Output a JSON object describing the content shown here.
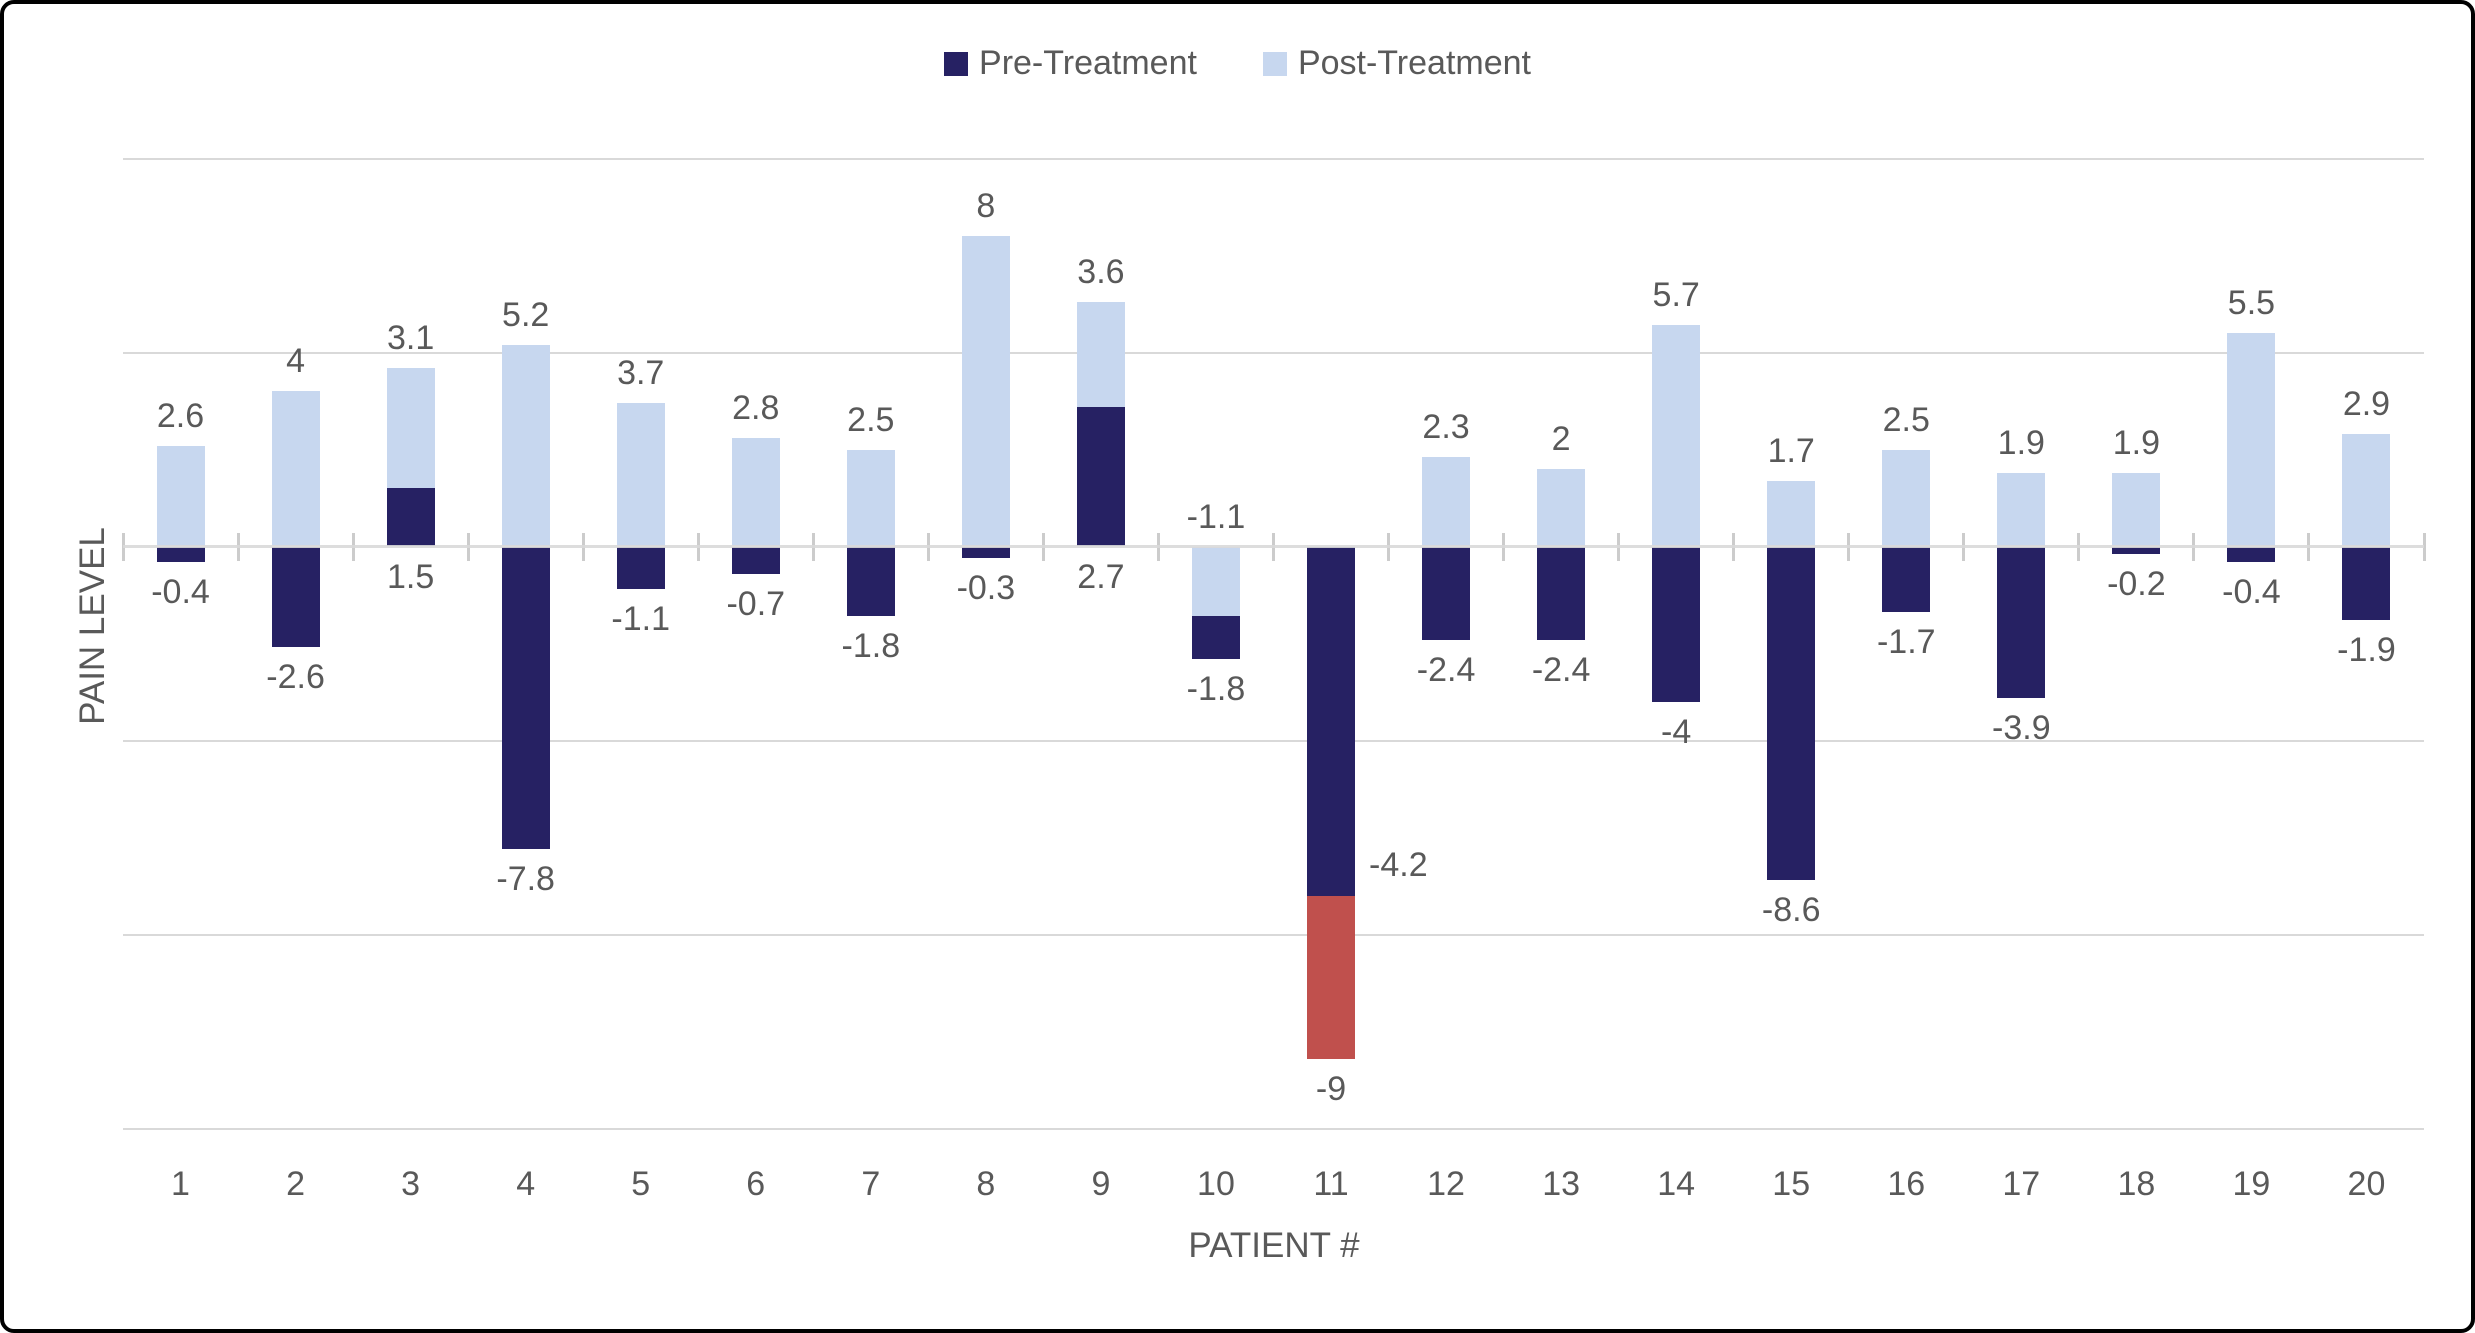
{
  "chart_data": {
    "type": "bar",
    "stacked": true,
    "title": "",
    "xlabel": "PATIENT #",
    "ylabel": "PAIN LEVEL",
    "ylim": [
      -15,
      10
    ],
    "gridline_values": [
      10,
      5,
      0,
      -5,
      -10,
      -15
    ],
    "grid": true,
    "legend_position": "top-center",
    "legend": [
      {
        "name": "Pre-Treatment",
        "series": "pre"
      },
      {
        "name": "Post-Treatment",
        "series": "post"
      }
    ],
    "colors": {
      "pre": "#262163",
      "post": "#C7D7EF",
      "post_highlight": "#C0504D",
      "text": "#595959",
      "gridline": "#D9D9D9",
      "tick": "#CCCCCC",
      "frame_border": "#000000"
    },
    "categories": [
      "1",
      "2",
      "3",
      "4",
      "5",
      "6",
      "7",
      "8",
      "9",
      "10",
      "11",
      "12",
      "13",
      "14",
      "15",
      "16",
      "17",
      "18",
      "19",
      "20"
    ],
    "patients": [
      {
        "id": "1",
        "pre": -0.4,
        "post": 2.6,
        "segments": [
          {
            "series": "pre",
            "from": -0.4,
            "to": 0
          },
          {
            "series": "post",
            "from": 0,
            "to": 2.6
          }
        ],
        "labels": [
          {
            "text": "2.6",
            "pos": "top"
          },
          {
            "text": "-0.4",
            "pos": "bottom"
          }
        ]
      },
      {
        "id": "2",
        "pre": -2.6,
        "post": 4,
        "segments": [
          {
            "series": "pre",
            "from": -2.6,
            "to": 0
          },
          {
            "series": "post",
            "from": 0,
            "to": 4
          }
        ],
        "labels": [
          {
            "text": "4",
            "pos": "top"
          },
          {
            "text": "-2.6",
            "pos": "bottom"
          }
        ]
      },
      {
        "id": "3",
        "pre": 1.5,
        "post": 3.1,
        "segments": [
          {
            "series": "pre",
            "from": 0,
            "to": 1.5
          },
          {
            "series": "post",
            "from": 1.5,
            "to": 4.6
          }
        ],
        "labels": [
          {
            "text": "3.1",
            "pos": "top"
          },
          {
            "text": "1.5",
            "pos": "bottom"
          }
        ]
      },
      {
        "id": "4",
        "pre": -7.8,
        "post": 5.2,
        "segments": [
          {
            "series": "pre",
            "from": -7.8,
            "to": 0
          },
          {
            "series": "post",
            "from": 0,
            "to": 5.2
          }
        ],
        "labels": [
          {
            "text": "5.2",
            "pos": "top"
          },
          {
            "text": "-7.8",
            "pos": "bottom"
          }
        ]
      },
      {
        "id": "5",
        "pre": -1.1,
        "post": 3.7,
        "segments": [
          {
            "series": "pre",
            "from": -1.1,
            "to": 0
          },
          {
            "series": "post",
            "from": 0,
            "to": 3.7
          }
        ],
        "labels": [
          {
            "text": "3.7",
            "pos": "top"
          },
          {
            "text": "-1.1",
            "pos": "bottom"
          }
        ]
      },
      {
        "id": "6",
        "pre": -0.7,
        "post": 2.8,
        "segments": [
          {
            "series": "pre",
            "from": -0.7,
            "to": 0
          },
          {
            "series": "post",
            "from": 0,
            "to": 2.8
          }
        ],
        "labels": [
          {
            "text": "2.8",
            "pos": "top"
          },
          {
            "text": "-0.7",
            "pos": "bottom"
          }
        ]
      },
      {
        "id": "7",
        "pre": -1.8,
        "post": 2.5,
        "segments": [
          {
            "series": "pre",
            "from": -1.8,
            "to": 0
          },
          {
            "series": "post",
            "from": 0,
            "to": 2.5
          }
        ],
        "labels": [
          {
            "text": "2.5",
            "pos": "top"
          },
          {
            "text": "-1.8",
            "pos": "bottom"
          }
        ]
      },
      {
        "id": "8",
        "pre": -0.3,
        "post": 8,
        "segments": [
          {
            "series": "pre",
            "from": -0.3,
            "to": 0
          },
          {
            "series": "post",
            "from": 0,
            "to": 8
          }
        ],
        "labels": [
          {
            "text": "8",
            "pos": "top"
          },
          {
            "text": "-0.3",
            "pos": "bottom"
          }
        ]
      },
      {
        "id": "9",
        "pre": 3.6,
        "post": 2.7,
        "segments": [
          {
            "series": "pre",
            "from": 0,
            "to": 3.6
          },
          {
            "series": "post",
            "from": 3.6,
            "to": 6.3
          }
        ],
        "labels": [
          {
            "text": "3.6",
            "pos": "top"
          },
          {
            "text": "2.7",
            "pos": "bottom"
          }
        ]
      },
      {
        "id": "10",
        "pre": -1.1,
        "post": -1.8,
        "segments": [
          {
            "series": "post",
            "from": -1.8,
            "to": 0
          },
          {
            "series": "pre",
            "from": -2.9,
            "to": -1.8
          }
        ],
        "labels": [
          {
            "text": "-1.1",
            "pos": "top"
          },
          {
            "text": "-1.8",
            "pos": "bottom"
          }
        ]
      },
      {
        "id": "11",
        "pre": -9,
        "post": -4.2,
        "highlighted": true,
        "segments": [
          {
            "series": "pre",
            "from": -9,
            "to": 0
          },
          {
            "series": "post_highlight",
            "from": -13.2,
            "to": -9
          }
        ],
        "labels": [
          {
            "text": "-4.2",
            "pos": "side",
            "at": -8.2
          },
          {
            "text": "-9",
            "pos": "bottom"
          }
        ]
      },
      {
        "id": "12",
        "pre": -2.4,
        "post": 2.3,
        "segments": [
          {
            "series": "pre",
            "from": -2.4,
            "to": 0
          },
          {
            "series": "post",
            "from": 0,
            "to": 2.3
          }
        ],
        "labels": [
          {
            "text": "2.3",
            "pos": "top"
          },
          {
            "text": "-2.4",
            "pos": "bottom"
          }
        ]
      },
      {
        "id": "13",
        "pre": -2.4,
        "post": 2,
        "segments": [
          {
            "series": "pre",
            "from": -2.4,
            "to": 0
          },
          {
            "series": "post",
            "from": 0,
            "to": 2
          }
        ],
        "labels": [
          {
            "text": "2",
            "pos": "top"
          },
          {
            "text": "-2.4",
            "pos": "bottom"
          }
        ]
      },
      {
        "id": "14",
        "pre": -4,
        "post": 5.7,
        "segments": [
          {
            "series": "pre",
            "from": -4,
            "to": 0
          },
          {
            "series": "post",
            "from": 0,
            "to": 5.7
          }
        ],
        "labels": [
          {
            "text": "5.7",
            "pos": "top"
          },
          {
            "text": "-4",
            "pos": "bottom"
          }
        ]
      },
      {
        "id": "15",
        "pre": -8.6,
        "post": 1.7,
        "segments": [
          {
            "series": "pre",
            "from": -8.6,
            "to": 0
          },
          {
            "series": "post",
            "from": 0,
            "to": 1.7
          }
        ],
        "labels": [
          {
            "text": "1.7",
            "pos": "top"
          },
          {
            "text": "-8.6",
            "pos": "bottom"
          }
        ]
      },
      {
        "id": "16",
        "pre": -1.7,
        "post": 2.5,
        "segments": [
          {
            "series": "pre",
            "from": -1.7,
            "to": 0
          },
          {
            "series": "post",
            "from": 0,
            "to": 2.5
          }
        ],
        "labels": [
          {
            "text": "2.5",
            "pos": "top"
          },
          {
            "text": "-1.7",
            "pos": "bottom"
          }
        ]
      },
      {
        "id": "17",
        "pre": -3.9,
        "post": 1.9,
        "segments": [
          {
            "series": "pre",
            "from": -3.9,
            "to": 0
          },
          {
            "series": "post",
            "from": 0,
            "to": 1.9
          }
        ],
        "labels": [
          {
            "text": "1.9",
            "pos": "top"
          },
          {
            "text": "-3.9",
            "pos": "bottom"
          }
        ]
      },
      {
        "id": "18",
        "pre": -0.2,
        "post": 1.9,
        "segments": [
          {
            "series": "pre",
            "from": -0.2,
            "to": 0
          },
          {
            "series": "post",
            "from": 0,
            "to": 1.9
          }
        ],
        "labels": [
          {
            "text": "1.9",
            "pos": "top"
          },
          {
            "text": "-0.2",
            "pos": "bottom"
          }
        ]
      },
      {
        "id": "19",
        "pre": -0.4,
        "post": 5.5,
        "segments": [
          {
            "series": "pre",
            "from": -0.4,
            "to": 0
          },
          {
            "series": "post",
            "from": 0,
            "to": 5.5
          }
        ],
        "labels": [
          {
            "text": "5.5",
            "pos": "top"
          },
          {
            "text": "-0.4",
            "pos": "bottom"
          }
        ]
      },
      {
        "id": "20",
        "pre": -1.9,
        "post": 2.9,
        "segments": [
          {
            "series": "pre",
            "from": -1.9,
            "to": 0
          },
          {
            "series": "post",
            "from": 0,
            "to": 2.9
          }
        ],
        "labels": [
          {
            "text": "2.9",
            "pos": "top"
          },
          {
            "text": "-1.9",
            "pos": "bottom"
          }
        ]
      }
    ]
  }
}
